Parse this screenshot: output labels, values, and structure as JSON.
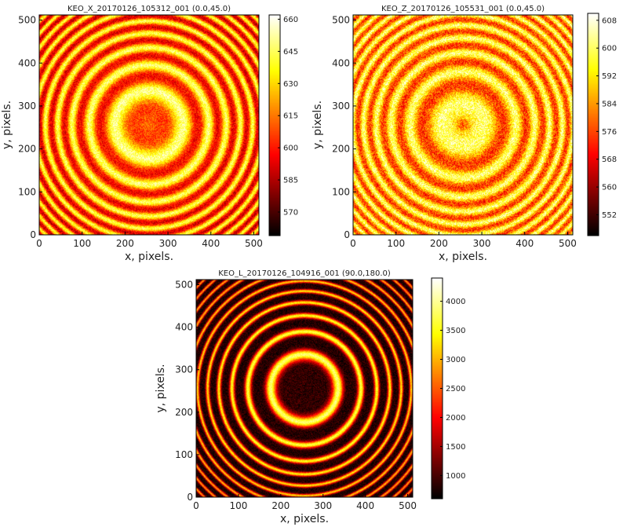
{
  "chart_data": [
    {
      "type": "heatmap",
      "title": "KEO_X_20170126_105312_001 (0.0,45.0)",
      "xlabel": "x, pixels.",
      "ylabel": "y, pixels.",
      "xlim": [
        0,
        512
      ],
      "ylim": [
        0,
        512
      ],
      "xticks": [
        "0",
        "100",
        "200",
        "300",
        "400",
        "500"
      ],
      "yticks": [
        "0",
        "100",
        "200",
        "300",
        "400",
        "500"
      ],
      "colormap": "hot",
      "colorbar": {
        "min": 559,
        "max": 662,
        "ticks": [
          "570",
          "585",
          "600",
          "615",
          "630",
          "645",
          "660"
        ]
      },
      "fringe_pattern": {
        "center_x": 256,
        "center_y": 256,
        "center_spot": "bright",
        "first_bright_ring_radius": 80,
        "ring_spacing_sq": 13000
      }
    },
    {
      "type": "heatmap",
      "title": "KEO_Z_20170126_105531_001 (0.0,45.0)",
      "xlabel": "x, pixels.",
      "ylabel": "y, pixels.",
      "xlim": [
        0,
        512
      ],
      "ylim": [
        0,
        512
      ],
      "xticks": [
        "0",
        "100",
        "200",
        "300",
        "400",
        "500"
      ],
      "yticks": [
        "0",
        "100",
        "200",
        "300",
        "400",
        "500"
      ],
      "colormap": "hot",
      "colorbar": {
        "min": 546,
        "max": 610,
        "ticks": [
          "552",
          "560",
          "568",
          "576",
          "584",
          "592",
          "600",
          "608"
        ]
      },
      "fringe_pattern": {
        "center_x": 256,
        "center_y": 256,
        "center_spot": "dim",
        "first_bright_ring_radius": 50,
        "ring_spacing_sq": 12800
      }
    },
    {
      "type": "heatmap",
      "title": "KEO_L_20170126_104916_001 (90.0,180.0)",
      "xlabel": "x, pixels.",
      "ylabel": "y, pixels.",
      "xlim": [
        0,
        512
      ],
      "ylim": [
        0,
        512
      ],
      "xticks": [
        "0",
        "100",
        "200",
        "300",
        "400",
        "500"
      ],
      "yticks": [
        "0",
        "100",
        "200",
        "300",
        "400",
        "500"
      ],
      "colormap": "hot",
      "colorbar": {
        "min": 600,
        "max": 4400,
        "ticks": [
          "1000",
          "1500",
          "2000",
          "2500",
          "3000",
          "3500",
          "4000"
        ]
      },
      "fringe_pattern": {
        "center_x": 256,
        "center_y": 256,
        "center_spot": "dark",
        "first_bright_ring_radius": 80,
        "ring_spacing_sq": 11500
      }
    }
  ]
}
